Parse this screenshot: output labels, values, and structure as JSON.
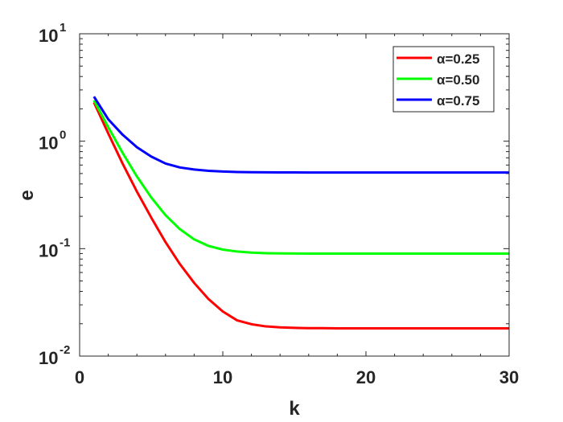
{
  "chart_data": {
    "type": "line",
    "title": "",
    "xlabel": "k",
    "ylabel": "e",
    "xlim": [
      0,
      30
    ],
    "ylim": [
      0.01,
      10
    ],
    "yscale": "log",
    "xticks": [
      {
        "value": 0,
        "label": "0"
      },
      {
        "value": 10,
        "label": "10"
      },
      {
        "value": 20,
        "label": "20"
      },
      {
        "value": 30,
        "label": "30"
      }
    ],
    "yticks": [
      {
        "value": 10,
        "base": "10",
        "exp": "1"
      },
      {
        "value": 1,
        "base": "10",
        "exp": "0"
      },
      {
        "value": 0.1,
        "base": "10",
        "exp": "-1"
      },
      {
        "value": 0.01,
        "base": "10",
        "exp": "-2"
      }
    ],
    "grid": false,
    "legend_position": "top-right",
    "x": [
      1,
      2,
      3,
      4,
      5,
      6,
      7,
      8,
      9,
      10,
      11,
      12,
      13,
      14,
      15,
      16,
      17,
      18,
      19,
      20,
      21,
      22,
      23,
      24,
      25,
      26,
      27,
      28,
      29,
      30
    ],
    "series": [
      {
        "name": "α=0.25",
        "color": "#ff0000",
        "values": [
          2.3,
          1.18,
          0.62,
          0.34,
          0.195,
          0.115,
          0.072,
          0.048,
          0.034,
          0.026,
          0.0215,
          0.0198,
          0.0189,
          0.0185,
          0.0183,
          0.0182,
          0.0182,
          0.0181,
          0.0181,
          0.0181,
          0.0181,
          0.0181,
          0.0181,
          0.0181,
          0.0181,
          0.0181,
          0.0181,
          0.0181,
          0.0181,
          0.0181
        ]
      },
      {
        "name": "α=0.50",
        "color": "#00ff00",
        "values": [
          2.4,
          1.35,
          0.78,
          0.47,
          0.3,
          0.205,
          0.152,
          0.122,
          0.106,
          0.098,
          0.094,
          0.0918,
          0.0908,
          0.0903,
          0.0901,
          0.09,
          0.09,
          0.09,
          0.09,
          0.09,
          0.09,
          0.09,
          0.09,
          0.09,
          0.09,
          0.09,
          0.09,
          0.09,
          0.09,
          0.09
        ]
      },
      {
        "name": "α=0.75",
        "color": "#0000ff",
        "values": [
          2.6,
          1.6,
          1.15,
          0.88,
          0.72,
          0.62,
          0.57,
          0.545,
          0.53,
          0.522,
          0.517,
          0.515,
          0.513,
          0.512,
          0.512,
          0.511,
          0.511,
          0.511,
          0.511,
          0.511,
          0.511,
          0.511,
          0.511,
          0.511,
          0.511,
          0.511,
          0.511,
          0.511,
          0.511,
          0.511
        ]
      }
    ]
  }
}
